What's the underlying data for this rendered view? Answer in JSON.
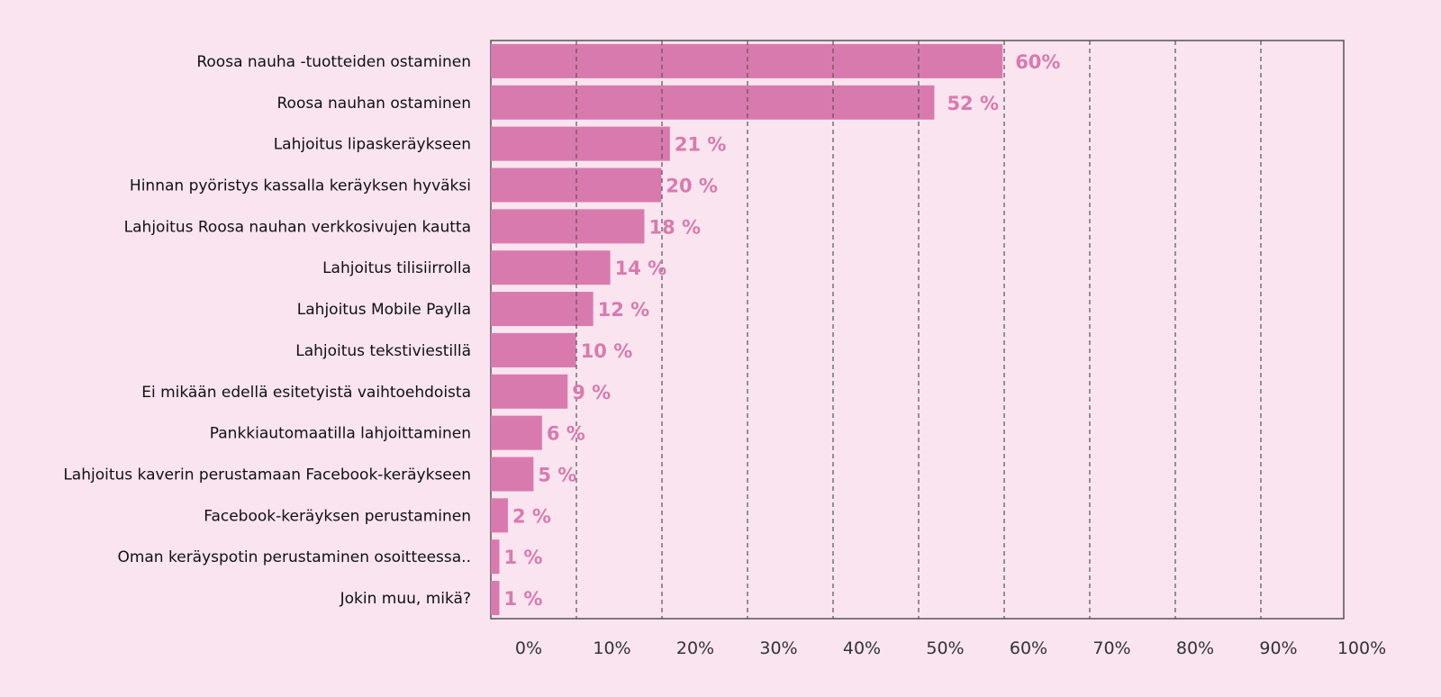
{
  "colors": {
    "background": "#f9e4ef",
    "bar": "#d97aae",
    "value_label": "#d97aae",
    "axis": "#555555",
    "gridline": "#555555",
    "category_text": "#111111",
    "tick_text": "#333333"
  },
  "chart_data": {
    "type": "bar",
    "orientation": "horizontal",
    "categories": [
      "Roosa nauha -tuotteiden ostaminen",
      "Roosa nauhan ostaminen",
      "Lahjoitus lipaskeräykseen",
      "Hinnan pyöristys kassalla keräyksen hyväksi",
      "Lahjoitus Roosa nauhan verkkosivujen kautta",
      "Lahjoitus tilisiirrolla",
      "Lahjoitus Mobile Paylla",
      "Lahjoitus tekstiviestillä",
      "Ei mikään edellä esitetyistä vaihtoehdoista",
      "Pankkiautomaatilla lahjoittaminen",
      "Lahjoitus kaverin perustamaan Facebook-keräykseen",
      "Facebook-keräyksen perustaminen",
      "Oman keräyspotin perustaminen osoitteessa..",
      "Jokin muu, mikä?"
    ],
    "values": [
      60,
      52,
      21,
      20,
      18,
      14,
      12,
      10,
      9,
      6,
      5,
      2,
      1,
      1
    ],
    "value_labels": [
      "60%",
      "52 %",
      "21 %",
      "20 %",
      "18 %",
      "14 %",
      "12 %",
      "10 %",
      "9 %",
      "6 %",
      "5 %",
      "2 %",
      "1 %",
      "1 %"
    ],
    "xlim": [
      0,
      100
    ],
    "xticks": [
      0,
      10,
      20,
      30,
      40,
      50,
      60,
      70,
      80,
      90,
      100
    ],
    "xtick_labels": [
      "0%",
      "10%",
      "20%",
      "30%",
      "40%",
      "50%",
      "60%",
      "70%",
      "80%",
      "90%",
      "100%"
    ],
    "grid": "vertical dashed",
    "legend": "none"
  }
}
